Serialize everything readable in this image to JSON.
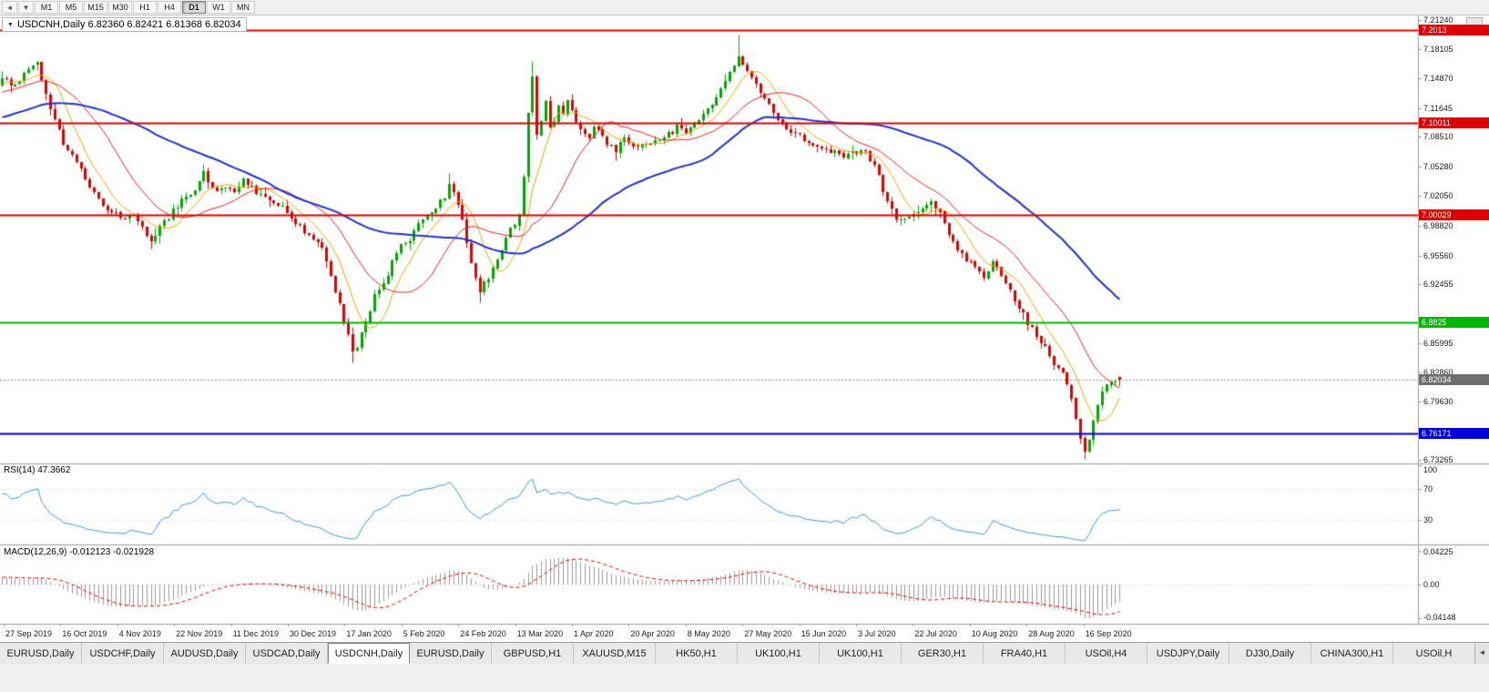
{
  "toolbar": {
    "nav_icons": [
      {
        "name": "left-arrow",
        "glyph": "◄"
      },
      {
        "name": "down-arrow",
        "glyph": "▼"
      }
    ],
    "timeframes": [
      "M1",
      "M5",
      "M15",
      "M30",
      "H1",
      "H4",
      "D1",
      "W1",
      "MN"
    ],
    "active_timeframe": "D1"
  },
  "chart": {
    "dropdown_glyph": "▼",
    "header_text": "USDCNH,Daily  6.82360 6.82421 6.81368 6.82034"
  },
  "indicators": {
    "rsi_label": "RSI(14) 47.3662",
    "macd_label": "MACD(12,26,9) -0.012123 -0.021928"
  },
  "price_axis": {
    "ticks": [
      "7.21240",
      "7.18105",
      "7.14870",
      "7.11645",
      "7.08510",
      "7.05280",
      "7.02050",
      "6.98820",
      "6.95560",
      "6.92455",
      "6.85995",
      "6.82860",
      "6.79630",
      "6.73265"
    ]
  },
  "current_price": {
    "label": "6.82034",
    "value": 6.82034,
    "badge_color": "#6e6e6e"
  },
  "rsi_axis": {
    "ticks": [
      "100",
      "70",
      "30"
    ],
    "values": [
      100,
      70,
      30
    ],
    "levels": [
      70,
      30
    ]
  },
  "macd_axis": {
    "ticks": [
      "0.04225",
      "0.00",
      "-0.04148"
    ]
  },
  "date_axis": {
    "labels": [
      "27 Sep 2019",
      "16 Oct 2019",
      "4 Nov 2019",
      "22 Nov 2019",
      "11 Dec 2019",
      "30 Dec 2019",
      "17 Jan 2020",
      "5 Feb 2020",
      "24 Feb 2020",
      "13 Mar 2020",
      "1 Apr 2020",
      "20 Apr 2020",
      "8 May 2020",
      "27 May 2020",
      "15 Jun 2020",
      "3 Jul 2020",
      "22 Jul 2020",
      "10 Aug 2020",
      "28 Aug 2020",
      "16 Sep 2020"
    ]
  },
  "tabs": {
    "items": [
      "EURUSD,Daily",
      "USDCHF,Daily",
      "AUDUSD,Daily",
      "USDCAD,Daily",
      "USDCNH,Daily",
      "EURUSD,Daily",
      "GBPUSD,H1",
      "XAUUSD,M15",
      "HK50,H1",
      "UK100,H1",
      "UK100,H1",
      "GER30,H1",
      "FRA40,H1",
      "USOil,H4",
      "USDJPY,Daily",
      "DJ30,Daily",
      "CHINA300,H1",
      "USOil,H"
    ],
    "active_index": 4,
    "scroll_icon_glyph": "◄"
  },
  "chart_data": {
    "type": "candlestick",
    "symbol": "USDCNH",
    "timeframe": "Daily",
    "ohlc_current": {
      "open": 6.8236,
      "high": 6.82421,
      "low": 6.81368,
      "close": 6.82034
    },
    "y_range": [
      6.729,
      7.2175
    ],
    "num_candles": 256,
    "up_color": "#00a800",
    "down_color": "#e00000",
    "price_anchors": [
      [
        0,
        7.148
      ],
      [
        3,
        7.14
      ],
      [
        6,
        7.158
      ],
      [
        8,
        7.163
      ],
      [
        10,
        7.13
      ],
      [
        12,
        7.105
      ],
      [
        14,
        7.075
      ],
      [
        17,
        7.06
      ],
      [
        20,
        7.028
      ],
      [
        23,
        7.008
      ],
      [
        27,
        6.997
      ],
      [
        30,
        7.0
      ],
      [
        34,
        6.973
      ],
      [
        37,
        6.992
      ],
      [
        41,
        7.016
      ],
      [
        44,
        7.03
      ],
      [
        46,
        7.047
      ],
      [
        48,
        7.03
      ],
      [
        50,
        7.026
      ],
      [
        53,
        7.028
      ],
      [
        55,
        7.036
      ],
      [
        58,
        7.025
      ],
      [
        60,
        7.022
      ],
      [
        63,
        7.012
      ],
      [
        65,
        7.002
      ],
      [
        68,
        6.988
      ],
      [
        70,
        6.976
      ],
      [
        73,
        6.962
      ],
      [
        75,
        6.935
      ],
      [
        77,
        6.9
      ],
      [
        79,
        6.868
      ],
      [
        80,
        6.852
      ],
      [
        81,
        6.858
      ],
      [
        83,
        6.88
      ],
      [
        85,
        6.915
      ],
      [
        87,
        6.925
      ],
      [
        90,
        6.96
      ],
      [
        93,
        6.975
      ],
      [
        95,
        6.99
      ],
      [
        97,
        6.998
      ],
      [
        99,
        7.006
      ],
      [
        101,
        7.02
      ],
      [
        102,
        7.032
      ],
      [
        103,
        7.028
      ],
      [
        105,
        6.995
      ],
      [
        107,
        6.95
      ],
      [
        109,
        6.916
      ],
      [
        111,
        6.932
      ],
      [
        113,
        6.952
      ],
      [
        115,
        6.975
      ],
      [
        117,
        6.992
      ],
      [
        118,
        7.002
      ],
      [
        119,
        7.045
      ],
      [
        120,
        7.11
      ],
      [
        121,
        7.148
      ],
      [
        122,
        7.085
      ],
      [
        123,
        7.1
      ],
      [
        124,
        7.122
      ],
      [
        125,
        7.095
      ],
      [
        126,
        7.103
      ],
      [
        127,
        7.118
      ],
      [
        128,
        7.108
      ],
      [
        129,
        7.124
      ],
      [
        130,
        7.112
      ],
      [
        132,
        7.092
      ],
      [
        134,
        7.082
      ],
      [
        135,
        7.095
      ],
      [
        137,
        7.088
      ],
      [
        138,
        7.076
      ],
      [
        140,
        7.07
      ],
      [
        142,
        7.082
      ],
      [
        144,
        7.078
      ],
      [
        146,
        7.074
      ],
      [
        148,
        7.08
      ],
      [
        150,
        7.082
      ],
      [
        152,
        7.088
      ],
      [
        154,
        7.095
      ],
      [
        156,
        7.092
      ],
      [
        158,
        7.1
      ],
      [
        160,
        7.108
      ],
      [
        162,
        7.12
      ],
      [
        164,
        7.135
      ],
      [
        166,
        7.154
      ],
      [
        167,
        7.166
      ],
      [
        168,
        7.176
      ],
      [
        169,
        7.162
      ],
      [
        170,
        7.155
      ],
      [
        171,
        7.148
      ],
      [
        173,
        7.132
      ],
      [
        175,
        7.12
      ],
      [
        176,
        7.114
      ],
      [
        178,
        7.1
      ],
      [
        180,
        7.09
      ],
      [
        182,
        7.085
      ],
      [
        184,
        7.079
      ],
      [
        186,
        7.076
      ],
      [
        188,
        7.074
      ],
      [
        190,
        7.068
      ],
      [
        192,
        7.064
      ],
      [
        194,
        7.068
      ],
      [
        196,
        7.071
      ],
      [
        198,
        7.062
      ],
      [
        199,
        7.055
      ],
      [
        200,
        7.04
      ],
      [
        202,
        7.012
      ],
      [
        204,
        6.998
      ],
      [
        205,
        6.994
      ],
      [
        207,
        7.0
      ],
      [
        209,
        7.006
      ],
      [
        211,
        7.012
      ],
      [
        212,
        7.016
      ],
      [
        214,
        7.002
      ],
      [
        215,
        6.994
      ],
      [
        216,
        6.98
      ],
      [
        218,
        6.962
      ],
      [
        220,
        6.95
      ],
      [
        222,
        6.944
      ],
      [
        224,
        6.934
      ],
      [
        226,
        6.948
      ],
      [
        228,
        6.932
      ],
      [
        230,
        6.916
      ],
      [
        232,
        6.9
      ],
      [
        234,
        6.882
      ],
      [
        236,
        6.868
      ],
      [
        238,
        6.856
      ],
      [
        240,
        6.84
      ],
      [
        242,
        6.826
      ],
      [
        244,
        6.8
      ],
      [
        245,
        6.776
      ],
      [
        246,
        6.755
      ],
      [
        247,
        6.742
      ],
      [
        248,
        6.752
      ],
      [
        249,
        6.772
      ],
      [
        250,
        6.792
      ],
      [
        251,
        6.806
      ],
      [
        252,
        6.818
      ],
      [
        253,
        6.822
      ],
      [
        254,
        6.816
      ],
      [
        255,
        6.82034
      ]
    ],
    "wick_overrides": {
      "34": {
        "low": 6.963
      },
      "46": {
        "high": 7.056
      },
      "80": {
        "low": 6.8395
      },
      "102": {
        "high": 7.046
      },
      "109": {
        "low": 6.905
      },
      "121": {
        "high": 7.168
      },
      "168": {
        "high": 7.1965
      },
      "247": {
        "low": 6.734
      }
    },
    "levels": [
      {
        "price": 7.2013,
        "label": "7.2013",
        "color": "#dd0000"
      },
      {
        "price": 7.10011,
        "label": "7.10011",
        "color": "#dd0000"
      },
      {
        "price": 7.00029,
        "label": "7.00029",
        "color": "#dd0000"
      },
      {
        "price": 6.8825,
        "label": "6.8825",
        "color": "#00b600"
      },
      {
        "price": 6.76171,
        "label": "6.76171",
        "color": "#0000d8"
      }
    ],
    "moving_averages": [
      {
        "period": 8,
        "color": "#eda500"
      },
      {
        "period": 20,
        "color": "#e52020"
      },
      {
        "period": 55,
        "color": "#2231cc"
      }
    ],
    "rsi": {
      "period": 14,
      "color": "#3d9ad1",
      "last": 47.3662
    },
    "macd": {
      "fast": 12,
      "slow": 26,
      "signal": 9,
      "macd_last": -0.012123,
      "signal_last": -0.021928,
      "hist_color": "#9a9a9a",
      "signal_color": "#e00000"
    }
  }
}
